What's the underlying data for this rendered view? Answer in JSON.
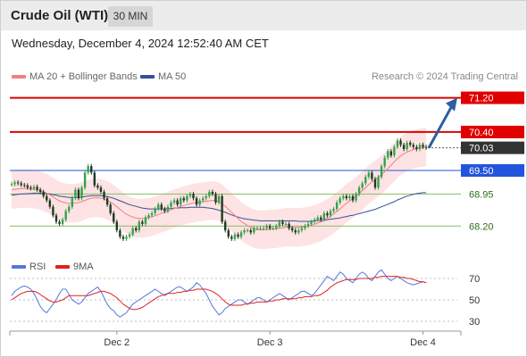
{
  "header": {
    "title": "Crude Oil (WTI)",
    "timeframe": "30 MIN"
  },
  "datetime": "Wednesday, December 4, 2024 12:52:40 AM CET",
  "legend": {
    "ma20_label": "MA 20 + Bollinger Bands",
    "ma50_label": "MA 50",
    "credit": "Research © 2024 Trading Central"
  },
  "rsi_legend": {
    "rsi_label": "RSI",
    "ma_label": "9MA"
  },
  "colors": {
    "resistance": "#e00000",
    "support_blue": "#2255dd",
    "support_green": "#88bb66",
    "bollinger_fill": "#fde3e3",
    "ma20": "#f08080",
    "ma50": "#34509a",
    "candle_up": "#34a34a",
    "candle_down": "#1f3a24",
    "rsi": "#5577dd",
    "rsi_ma": "#dd2222",
    "arrow": "#2c5f9e",
    "current_bg": "#333333"
  },
  "chart_data": [
    {
      "type": "candlestick",
      "title": "Crude Oil (WTI)",
      "timeframe": "30 MIN",
      "x_ticks": [
        {
          "label": "Dec 2",
          "index": 33
        },
        {
          "label": "Dec 3",
          "index": 81
        },
        {
          "label": "Dec 4",
          "index": 129
        }
      ],
      "ylim": [
        67.6,
        71.4
      ],
      "levels": [
        {
          "label": "71.20",
          "value": 71.2,
          "role": "target"
        },
        {
          "label": "70.40",
          "value": 70.4,
          "role": "resistance"
        },
        {
          "label": "70.03",
          "value": 70.03,
          "role": "current"
        },
        {
          "label": "69.50",
          "value": 69.5,
          "role": "pivot"
        },
        {
          "label": "68.95",
          "value": 68.95,
          "role": "support"
        },
        {
          "label": "68.20",
          "value": 68.2,
          "role": "support"
        }
      ],
      "series": [
        {
          "name": "Price",
          "close": [
            69.18,
            69.22,
            69.2,
            69.16,
            69.15,
            69.1,
            69.08,
            69.12,
            69.05,
            69.0,
            68.9,
            68.8,
            68.65,
            68.45,
            68.3,
            68.25,
            68.35,
            68.55,
            68.65,
            68.85,
            69.05,
            68.85,
            69.1,
            69.45,
            69.6,
            69.45,
            69.15,
            69.1,
            69.0,
            68.85,
            68.7,
            68.5,
            68.3,
            68.1,
            67.95,
            67.9,
            67.95,
            68.0,
            68.15,
            68.1,
            68.3,
            68.25,
            68.4,
            68.45,
            68.5,
            68.6,
            68.7,
            68.6,
            68.55,
            68.65,
            68.75,
            68.8,
            68.7,
            68.85,
            68.8,
            68.9,
            68.95,
            68.85,
            68.7,
            68.8,
            68.85,
            68.9,
            69.0,
            68.95,
            68.75,
            68.9,
            68.3,
            68.1,
            67.95,
            67.9,
            68.0,
            67.95,
            68.05,
            68.1,
            68.1,
            68.05,
            68.15,
            68.15,
            68.15,
            68.15,
            68.2,
            68.15,
            68.15,
            68.2,
            68.3,
            68.25,
            68.25,
            68.15,
            68.1,
            68.05,
            68.1,
            68.15,
            68.2,
            68.25,
            68.3,
            68.35,
            68.4,
            68.35,
            68.5,
            68.45,
            68.55,
            68.6,
            68.75,
            68.85,
            68.9,
            68.85,
            68.9,
            68.8,
            68.95,
            69.1,
            69.2,
            69.35,
            69.45,
            69.3,
            69.1,
            69.35,
            69.6,
            69.8,
            69.95,
            69.85,
            70.05,
            70.2,
            70.1,
            70.0,
            70.15,
            70.1,
            70.05,
            70.0,
            70.1,
            70.05,
            70.03
          ],
          "ma20": [
            69.05,
            69.06,
            69.07,
            69.07,
            69.08,
            69.08,
            69.07,
            69.06,
            69.05,
            69.03,
            69.0,
            68.97,
            68.93,
            68.88,
            68.83,
            68.79,
            68.76,
            68.74,
            68.73,
            68.73,
            68.74,
            68.75,
            68.77,
            68.8,
            68.83,
            68.85,
            68.86,
            68.86,
            68.85,
            68.83,
            68.8,
            68.76,
            68.71,
            68.65,
            68.59,
            68.53,
            68.48,
            68.44,
            68.41,
            68.39,
            68.38,
            68.38,
            68.39,
            68.4,
            68.42,
            68.44,
            68.47,
            68.5,
            68.52,
            68.55,
            68.58,
            68.61,
            68.63,
            68.66,
            68.68,
            68.7,
            68.72,
            68.74,
            68.75,
            68.76,
            68.77,
            68.78,
            68.79,
            68.8,
            68.79,
            68.77,
            68.72,
            68.66,
            68.59,
            68.52,
            68.45,
            68.38,
            68.31,
            68.26,
            68.21,
            68.17,
            68.14,
            68.12,
            68.11,
            68.11,
            68.12,
            68.13,
            68.13,
            68.14,
            68.15,
            68.16,
            68.17,
            68.17,
            68.17,
            68.17,
            68.17,
            68.18,
            68.19,
            68.2,
            68.22,
            68.24,
            68.27,
            68.3,
            68.34,
            68.38,
            68.43,
            68.48,
            68.54,
            68.6,
            68.67,
            68.73,
            68.79,
            68.84,
            68.9,
            68.96,
            69.03,
            69.1,
            69.17,
            69.23,
            69.28,
            69.34,
            69.4,
            69.47,
            69.55,
            69.62,
            69.7,
            69.78,
            69.84,
            69.89,
            69.93,
            69.96,
            69.99,
            70.01,
            70.03,
            70.04,
            70.05
          ],
          "ma50": [
            68.92,
            68.93,
            68.94,
            68.95,
            68.95,
            68.96,
            68.96,
            68.97,
            68.97,
            68.97,
            68.97,
            68.96,
            68.95,
            68.93,
            68.92,
            68.9,
            68.89,
            68.88,
            68.87,
            68.87,
            68.87,
            68.87,
            68.88,
            68.89,
            68.9,
            68.91,
            68.91,
            68.91,
            68.91,
            68.9,
            68.89,
            68.87,
            68.85,
            68.82,
            68.79,
            68.76,
            68.73,
            68.7,
            68.68,
            68.66,
            68.64,
            68.62,
            68.61,
            68.6,
            68.6,
            68.6,
            68.6,
            68.6,
            68.6,
            68.61,
            68.61,
            68.62,
            68.62,
            68.63,
            68.63,
            68.63,
            68.64,
            68.64,
            68.64,
            68.64,
            68.64,
            68.63,
            68.62,
            68.61,
            68.59,
            68.57,
            68.55,
            68.52,
            68.49,
            68.46,
            68.43,
            68.41,
            68.39,
            68.37,
            68.36,
            68.35,
            68.34,
            68.33,
            68.32,
            68.32,
            68.32,
            68.32,
            68.32,
            68.32,
            68.32,
            68.32,
            68.32,
            68.32,
            68.32,
            68.32,
            68.31,
            68.31,
            68.31,
            68.31,
            68.31,
            68.32,
            68.33,
            68.33,
            68.34,
            68.35,
            68.36,
            68.37,
            68.38,
            68.39,
            68.41,
            68.42,
            68.44,
            68.45,
            68.47,
            68.49,
            68.51,
            68.53,
            68.55,
            68.57,
            68.59,
            68.62,
            68.65,
            68.68,
            68.71,
            68.74,
            68.77,
            68.81,
            68.84,
            68.87,
            68.9,
            68.92,
            68.94,
            68.96,
            68.97,
            68.98,
            68.98
          ]
        }
      ]
    },
    {
      "type": "line",
      "title": "RSI",
      "y_ticks": [
        70,
        50,
        30
      ],
      "ylim": [
        20,
        80
      ],
      "series": [
        {
          "name": "RSI",
          "values": [
            54,
            58,
            60,
            62,
            63,
            62,
            60,
            56,
            50,
            44,
            40,
            38,
            42,
            46,
            50,
            56,
            60,
            60,
            55,
            50,
            48,
            46,
            48,
            52,
            56,
            58,
            60,
            62,
            58,
            52,
            46,
            42,
            40,
            36,
            34,
            36,
            38,
            42,
            46,
            48,
            50,
            52,
            54,
            56,
            58,
            60,
            58,
            56,
            54,
            56,
            58,
            60,
            62,
            62,
            60,
            58,
            60,
            62,
            66,
            64,
            60,
            56,
            50,
            44,
            40,
            36,
            38,
            42,
            44,
            46,
            48,
            50,
            50,
            48,
            46,
            48,
            50,
            52,
            52,
            50,
            48,
            50,
            52,
            54,
            56,
            54,
            52,
            50,
            52,
            54,
            56,
            58,
            58,
            56,
            54,
            56,
            60,
            64,
            68,
            72,
            70,
            68,
            72,
            76,
            74,
            70,
            68,
            66,
            70,
            74,
            76,
            74,
            70,
            68,
            72,
            76,
            78,
            74,
            70,
            68,
            70,
            72,
            70,
            68,
            66,
            65,
            64,
            65,
            66,
            67,
            66
          ]
        },
        {
          "name": "9MA",
          "values": [
            50,
            52,
            54,
            56,
            57,
            58,
            58,
            58,
            57,
            55,
            53,
            51,
            49,
            48,
            48,
            49,
            50,
            52,
            54,
            54,
            54,
            54,
            54,
            54,
            54,
            55,
            56,
            57,
            58,
            58,
            57,
            56,
            54,
            52,
            49,
            46,
            44,
            42,
            41,
            41,
            42,
            43,
            45,
            47,
            49,
            51,
            53,
            54,
            55,
            56,
            56,
            56,
            57,
            57,
            58,
            58,
            59,
            59,
            60,
            60,
            60,
            60,
            59,
            58,
            56,
            54,
            51,
            48,
            46,
            45,
            45,
            45,
            45,
            46,
            46,
            47,
            47,
            48,
            48,
            48,
            48,
            49,
            49,
            50,
            50,
            51,
            51,
            51,
            51,
            51,
            52,
            52,
            53,
            53,
            53,
            54,
            54,
            55,
            57,
            59,
            62,
            64,
            66,
            67,
            68,
            69,
            69,
            69,
            69,
            70,
            70,
            70,
            70,
            70,
            71,
            71,
            72,
            72,
            72,
            72,
            72,
            72,
            71,
            71,
            70,
            70,
            69,
            68,
            67,
            67,
            66
          ]
        }
      ]
    }
  ]
}
